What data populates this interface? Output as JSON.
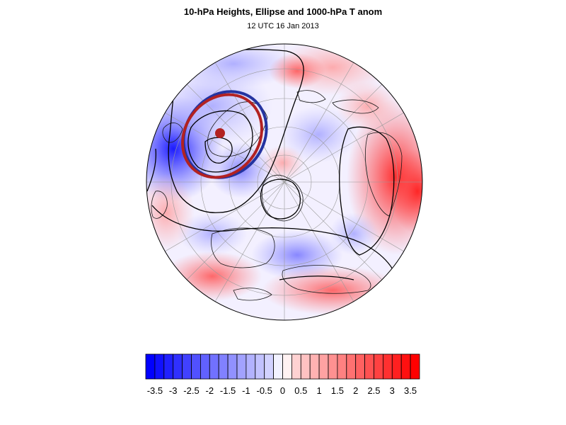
{
  "title": "10-hPa Heights, Ellipse and 1000-hPa T anom",
  "subtitle": "12 UTC 16 Jan 2013",
  "colorbar": {
    "labels": [
      "-3.5",
      "-3",
      "-2.5",
      "-2",
      "-1.5",
      "-1",
      "-0.5",
      "0",
      "0.5",
      "1",
      "1.5",
      "2",
      "2.5",
      "3",
      "3.5"
    ],
    "min": -3.75,
    "max": 3.75,
    "step": 0.25,
    "negative_color": "#0000ff",
    "positive_color": "#ff0000",
    "neutral_color": "#ffffff"
  },
  "map": {
    "projection": "polar-stereographic-north",
    "fill_field": "1000-hPa temperature anomaly",
    "contour_field": "10-hPa geopotential height",
    "ellipse_colors": [
      "#2433a0",
      "#b22222"
    ],
    "ellipse_center_marker_color": "#b22222"
  }
}
